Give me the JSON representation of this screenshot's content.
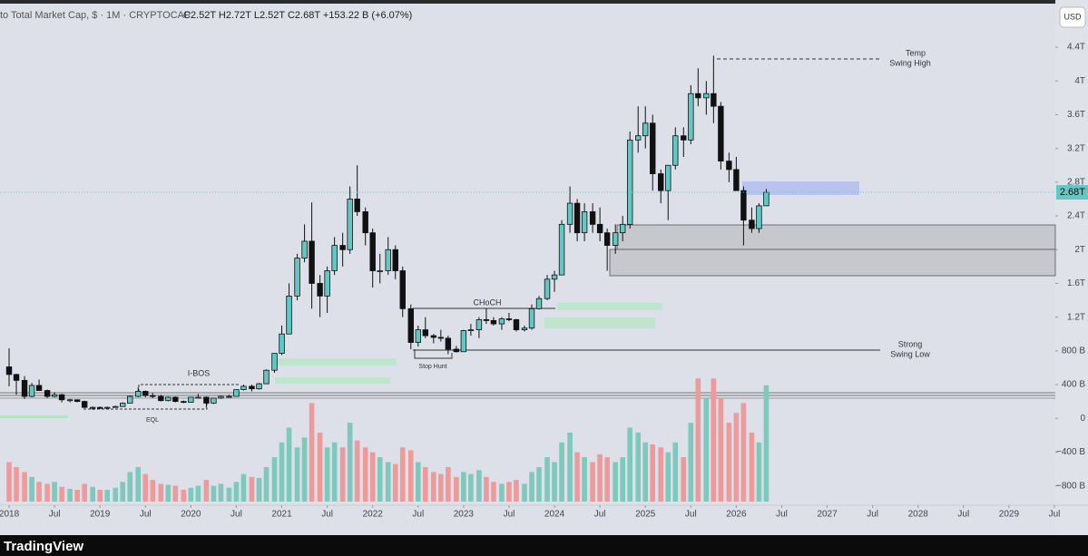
{
  "chart_data": {
    "type": "candlestick",
    "header": {
      "symbol": "to Total Market Cap, $ · 1M · CRYPTOCAP",
      "ohlc": "C2.52T  H2.72T  L2.52T  C2.68T  +153.22 B (+6.07%)"
    },
    "currency": "USD",
    "last_price_label": "2.68T",
    "last_price": 2.68,
    "brand": "TradingView",
    "annotations": {
      "temp": "Temp",
      "swing_high": "Swing High",
      "strong": "Strong",
      "swing_low": "Swing Low",
      "choch": "CHoCH",
      "ibos": "I-BOS",
      "eql": "EQL",
      "stop_hunt": "Stop Hunt"
    },
    "up_color": "#63c7c3",
    "down_color": "#111111",
    "volume_up_color": "#7ec8bd",
    "volume_down_color": "#ee9a9a",
    "xlim": [
      2017.9,
      2029.51
    ],
    "xticks": [
      {
        "value": 2018,
        "label": "2018"
      },
      {
        "value": 2018.5,
        "label": "Jul"
      },
      {
        "value": 2019,
        "label": "2019"
      },
      {
        "value": 2019.5,
        "label": "Jul"
      },
      {
        "value": 2020,
        "label": "2020"
      },
      {
        "value": 2020.5,
        "label": "Jul"
      },
      {
        "value": 2021,
        "label": "2021"
      },
      {
        "value": 2021.5,
        "label": "Jul"
      },
      {
        "value": 2022,
        "label": "2022"
      },
      {
        "value": 2022.5,
        "label": "Jul"
      },
      {
        "value": 2023,
        "label": "2023"
      },
      {
        "value": 2023.5,
        "label": "Jul"
      },
      {
        "value": 2024,
        "label": "2024"
      },
      {
        "value": 2024.5,
        "label": "Jul"
      },
      {
        "value": 2025,
        "label": "2025"
      },
      {
        "value": 2025.5,
        "label": "Jul"
      },
      {
        "value": 2026,
        "label": "2026"
      },
      {
        "value": 2026.5,
        "label": "Jul"
      },
      {
        "value": 2027,
        "label": "2027"
      },
      {
        "value": 2027.5,
        "label": "Jul"
      },
      {
        "value": 2028,
        "label": "2028"
      },
      {
        "value": 2028.5,
        "label": "Jul"
      },
      {
        "value": 2029,
        "label": "2029"
      },
      {
        "value": 2029.5,
        "label": "Jul"
      }
    ],
    "ylim": [
      -1.03,
      4.96
    ],
    "yticks": [
      {
        "value": 4.4,
        "label": "4.4T"
      },
      {
        "value": 4,
        "label": "4T"
      },
      {
        "value": 3.6,
        "label": "3.6T"
      },
      {
        "value": 3.2,
        "label": "3.2T"
      },
      {
        "value": 2.8,
        "label": "2.8T"
      },
      {
        "value": 2.4,
        "label": "2.4T"
      },
      {
        "value": 2,
        "label": "2T"
      },
      {
        "value": 1.6,
        "label": "1.6T"
      },
      {
        "value": 1.2,
        "label": "1.2T"
      },
      {
        "value": 0.8,
        "label": "800 B"
      },
      {
        "value": 0.4,
        "label": "400 B"
      },
      0,
      {
        "value": -0.4,
        "label": "−400 B"
      },
      {
        "value": -0.8,
        "label": "−800 B"
      }
    ],
    "volume_ylim": [
      0,
      150
    ],
    "x": [
      2018.0,
      2018.08,
      2018.17,
      2018.25,
      2018.33,
      2018.42,
      2018.5,
      2018.58,
      2018.67,
      2018.75,
      2018.83,
      2018.92,
      2019.0,
      2019.08,
      2019.17,
      2019.25,
      2019.33,
      2019.42,
      2019.5,
      2019.58,
      2019.67,
      2019.75,
      2019.83,
      2019.92,
      2020.0,
      2020.08,
      2020.17,
      2020.25,
      2020.33,
      2020.42,
      2020.5,
      2020.58,
      2020.67,
      2020.75,
      2020.83,
      2020.92,
      2021.0,
      2021.08,
      2021.17,
      2021.25,
      2021.33,
      2021.42,
      2021.5,
      2021.58,
      2021.67,
      2021.75,
      2021.83,
      2021.92,
      2022.0,
      2022.08,
      2022.17,
      2022.25,
      2022.33,
      2022.42,
      2022.5,
      2022.58,
      2022.67,
      2022.75,
      2022.83,
      2022.92,
      2023.0,
      2023.08,
      2023.17,
      2023.25,
      2023.33,
      2023.42,
      2023.5,
      2023.58,
      2023.67,
      2023.75,
      2023.83,
      2023.92,
      2024.0,
      2024.08,
      2024.17,
      2024.25,
      2024.33,
      2024.42,
      2024.5,
      2024.58,
      2024.67,
      2024.75,
      2024.83,
      2024.92,
      2025.0,
      2025.08,
      2025.17,
      2025.25,
      2025.33,
      2025.42,
      2025.5,
      2025.58,
      2025.67,
      2025.75,
      2025.83,
      2025.92,
      2026.0,
      2026.08,
      2026.17,
      2026.25,
      2026.33
    ],
    "candles": [
      [
        0.61,
        0.83,
        0.38,
        0.52
      ],
      [
        0.52,
        0.53,
        0.28,
        0.45
      ],
      [
        0.45,
        0.5,
        0.23,
        0.26
      ],
      [
        0.26,
        0.42,
        0.25,
        0.39
      ],
      [
        0.39,
        0.46,
        0.33,
        0.33
      ],
      [
        0.33,
        0.34,
        0.24,
        0.26
      ],
      [
        0.26,
        0.31,
        0.25,
        0.28
      ],
      [
        0.28,
        0.29,
        0.19,
        0.22
      ],
      [
        0.22,
        0.23,
        0.19,
        0.22
      ],
      [
        0.22,
        0.22,
        0.19,
        0.2
      ],
      [
        0.2,
        0.21,
        0.12,
        0.13
      ],
      [
        0.13,
        0.14,
        0.1,
        0.13
      ],
      [
        0.13,
        0.14,
        0.11,
        0.12
      ],
      [
        0.12,
        0.14,
        0.11,
        0.13
      ],
      [
        0.13,
        0.15,
        0.13,
        0.14
      ],
      [
        0.14,
        0.19,
        0.14,
        0.18
      ],
      [
        0.18,
        0.27,
        0.18,
        0.26
      ],
      [
        0.26,
        0.37,
        0.25,
        0.32
      ],
      [
        0.32,
        0.33,
        0.25,
        0.27
      ],
      [
        0.27,
        0.3,
        0.24,
        0.26
      ],
      [
        0.26,
        0.28,
        0.2,
        0.21
      ],
      [
        0.21,
        0.26,
        0.2,
        0.25
      ],
      [
        0.25,
        0.26,
        0.19,
        0.2
      ],
      [
        0.2,
        0.21,
        0.18,
        0.19
      ],
      [
        0.19,
        0.25,
        0.19,
        0.25
      ],
      [
        0.25,
        0.29,
        0.24,
        0.25
      ],
      [
        0.25,
        0.26,
        0.13,
        0.18
      ],
      [
        0.18,
        0.24,
        0.17,
        0.24
      ],
      [
        0.24,
        0.27,
        0.23,
        0.26
      ],
      [
        0.26,
        0.28,
        0.25,
        0.26
      ],
      [
        0.26,
        0.34,
        0.26,
        0.34
      ],
      [
        0.34,
        0.4,
        0.33,
        0.38
      ],
      [
        0.38,
        0.4,
        0.32,
        0.35
      ],
      [
        0.35,
        0.42,
        0.34,
        0.41
      ],
      [
        0.41,
        0.58,
        0.41,
        0.57
      ],
      [
        0.57,
        0.77,
        0.54,
        0.77
      ],
      [
        0.77,
        1.1,
        0.75,
        1.0
      ],
      [
        1.0,
        1.6,
        1.0,
        1.45
      ],
      [
        1.45,
        1.95,
        1.4,
        1.9
      ],
      [
        1.9,
        2.3,
        1.85,
        2.1
      ],
      [
        2.1,
        2.56,
        1.3,
        1.6
      ],
      [
        1.6,
        1.7,
        1.2,
        1.45
      ],
      [
        1.45,
        1.8,
        1.25,
        1.75
      ],
      [
        1.75,
        2.15,
        1.7,
        2.05
      ],
      [
        2.05,
        2.2,
        1.8,
        2.0
      ],
      [
        2.0,
        2.75,
        1.95,
        2.6
      ],
      [
        2.6,
        3.0,
        2.4,
        2.45
      ],
      [
        2.45,
        2.5,
        2.05,
        2.2
      ],
      [
        2.2,
        2.25,
        1.55,
        1.75
      ],
      [
        1.75,
        1.95,
        1.6,
        1.75
      ],
      [
        1.75,
        2.15,
        1.7,
        2.0
      ],
      [
        2.0,
        2.05,
        1.65,
        1.75
      ],
      [
        1.75,
        1.8,
        1.2,
        1.3
      ],
      [
        1.3,
        1.35,
        0.82,
        0.9
      ],
      [
        0.9,
        1.1,
        0.85,
        1.05
      ],
      [
        1.05,
        1.2,
        0.95,
        0.98
      ],
      [
        0.98,
        1.0,
        0.89,
        0.96
      ],
      [
        0.96,
        1.05,
        0.91,
        0.95
      ],
      [
        0.95,
        0.98,
        0.76,
        0.82
      ],
      [
        0.82,
        0.86,
        0.78,
        0.79
      ],
      [
        0.79,
        1.05,
        0.79,
        1.04
      ],
      [
        1.04,
        1.12,
        0.98,
        1.05
      ],
      [
        1.05,
        1.2,
        0.95,
        1.17
      ],
      [
        1.17,
        1.3,
        1.12,
        1.16
      ],
      [
        1.16,
        1.2,
        1.1,
        1.12
      ],
      [
        1.12,
        1.2,
        1.05,
        1.18
      ],
      [
        1.18,
        1.25,
        1.15,
        1.17
      ],
      [
        1.17,
        1.18,
        1.03,
        1.05
      ],
      [
        1.05,
        1.1,
        1.03,
        1.07
      ],
      [
        1.07,
        1.35,
        1.05,
        1.3
      ],
      [
        1.3,
        1.45,
        1.29,
        1.42
      ],
      [
        1.42,
        1.7,
        1.4,
        1.65
      ],
      [
        1.65,
        1.75,
        1.5,
        1.7
      ],
      [
        1.7,
        2.35,
        1.7,
        2.3
      ],
      [
        2.3,
        2.75,
        2.2,
        2.55
      ],
      [
        2.55,
        2.6,
        2.1,
        2.2
      ],
      [
        2.2,
        2.55,
        2.1,
        2.45
      ],
      [
        2.45,
        2.55,
        2.2,
        2.3
      ],
      [
        2.3,
        2.5,
        2.1,
        2.2
      ],
      [
        2.2,
        2.25,
        1.75,
        2.05
      ],
      [
        2.05,
        2.3,
        1.95,
        2.2
      ],
      [
        2.2,
        2.4,
        2.1,
        2.3
      ],
      [
        2.3,
        3.4,
        2.25,
        3.3
      ],
      [
        3.3,
        3.7,
        3.15,
        3.35
      ],
      [
        3.35,
        3.7,
        3.2,
        3.5
      ],
      [
        3.5,
        3.6,
        2.7,
        2.9
      ],
      [
        2.9,
        2.95,
        2.55,
        2.7
      ],
      [
        2.7,
        3.0,
        2.35,
        3.0
      ],
      [
        3.0,
        3.45,
        2.95,
        3.35
      ],
      [
        3.35,
        3.45,
        3.1,
        3.3
      ],
      [
        3.3,
        3.95,
        3.25,
        3.85
      ],
      [
        3.85,
        4.15,
        3.7,
        3.8
      ],
      [
        3.8,
        4.0,
        3.6,
        3.85
      ],
      [
        3.85,
        4.3,
        3.5,
        3.7
      ],
      [
        3.7,
        3.75,
        2.95,
        3.05
      ],
      [
        3.05,
        3.15,
        2.8,
        2.95
      ],
      [
        2.95,
        3.1,
        2.7,
        2.7
      ],
      [
        2.7,
        2.75,
        2.05,
        2.35
      ],
      [
        2.35,
        2.5,
        2.2,
        2.25
      ],
      [
        2.25,
        2.55,
        2.2,
        2.52
      ],
      [
        2.52,
        2.72,
        2.52,
        2.68
      ]
    ],
    "volume": [
      40,
      35,
      30,
      25,
      20,
      18,
      20,
      15,
      13,
      12,
      18,
      15,
      12,
      12,
      14,
      20,
      30,
      35,
      28,
      22,
      18,
      17,
      16,
      12,
      14,
      16,
      22,
      16,
      18,
      14,
      20,
      28,
      25,
      24,
      35,
      45,
      60,
      75,
      55,
      65,
      100,
      70,
      55,
      60,
      55,
      80,
      62,
      55,
      50,
      45,
      40,
      38,
      55,
      52,
      40,
      35,
      30,
      28,
      35,
      25,
      30,
      28,
      32,
      25,
      20,
      18,
      20,
      22,
      18,
      30,
      35,
      45,
      40,
      60,
      70,
      50,
      45,
      40,
      48,
      45,
      40,
      45,
      75,
      70,
      60,
      58,
      55,
      50,
      60,
      45,
      80,
      125,
      105,
      125,
      105,
      80,
      90,
      100,
      70,
      60,
      118
    ]
  }
}
